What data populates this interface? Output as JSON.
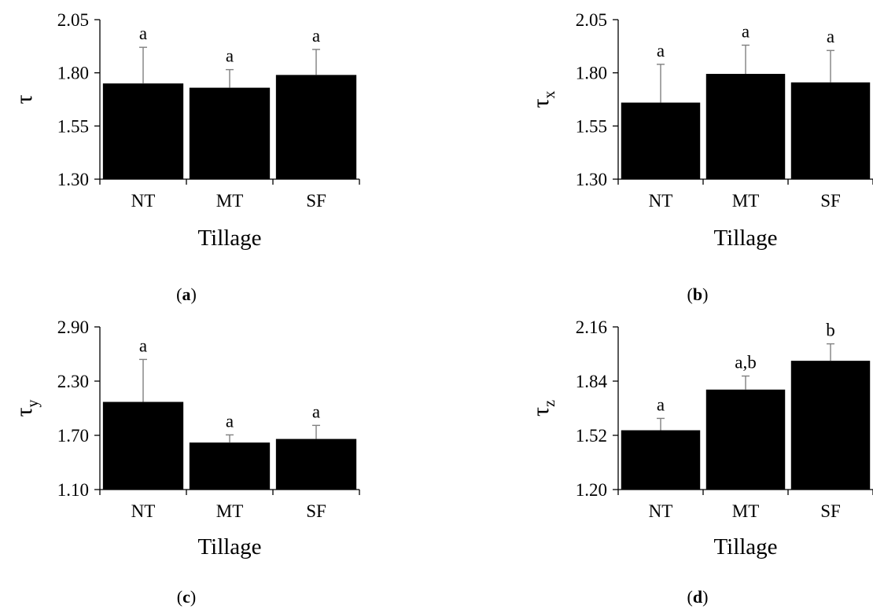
{
  "colors": {
    "bar": "#000000",
    "error_bar": "#808080",
    "axis": "#000000"
  },
  "chart_data": [
    {
      "type": "bar",
      "panel": "a",
      "categories": [
        "NT",
        "MT",
        "SF"
      ],
      "values": [
        1.75,
        1.73,
        1.79
      ],
      "error": [
        0.17,
        0.085,
        0.12
      ],
      "significance": [
        "a",
        "a",
        "a"
      ],
      "xlabel": "Tillage",
      "ylabel": "τ",
      "ylabel_sub": "",
      "ylim": [
        1.3,
        2.05
      ],
      "yticks": [
        "1.30",
        "1.55",
        "1.80",
        "2.05"
      ],
      "grid": false
    },
    {
      "type": "bar",
      "panel": "b",
      "categories": [
        "NT",
        "MT",
        "SF"
      ],
      "values": [
        1.66,
        1.795,
        1.755
      ],
      "error": [
        0.18,
        0.135,
        0.15
      ],
      "significance": [
        "a",
        "a",
        "a"
      ],
      "xlabel": "Tillage",
      "ylabel": "τ",
      "ylabel_sub": "x",
      "ylim": [
        1.3,
        2.05
      ],
      "yticks": [
        "1.30",
        "1.55",
        "1.80",
        "2.05"
      ],
      "grid": false
    },
    {
      "type": "bar",
      "panel": "c",
      "categories": [
        "NT",
        "MT",
        "SF"
      ],
      "values": [
        2.07,
        1.62,
        1.66
      ],
      "error": [
        0.47,
        0.085,
        0.15
      ],
      "significance": [
        "a",
        "a",
        "a"
      ],
      "xlabel": "Tillage",
      "ylabel": "τ",
      "ylabel_sub": "y",
      "ylim": [
        1.1,
        2.9
      ],
      "yticks": [
        "1.10",
        "1.70",
        "2.30",
        "2.90"
      ],
      "grid": false
    },
    {
      "type": "bar",
      "panel": "d",
      "categories": [
        "NT",
        "MT",
        "SF"
      ],
      "values": [
        1.55,
        1.79,
        1.96
      ],
      "error": [
        0.07,
        0.08,
        0.1
      ],
      "significance": [
        "a",
        "a,b",
        "b"
      ],
      "xlabel": "Tillage",
      "ylabel": "τ",
      "ylabel_sub": "z",
      "ylim": [
        1.2,
        2.16
      ],
      "yticks": [
        "1.20",
        "1.52",
        "1.84",
        "2.16"
      ],
      "grid": false
    }
  ]
}
